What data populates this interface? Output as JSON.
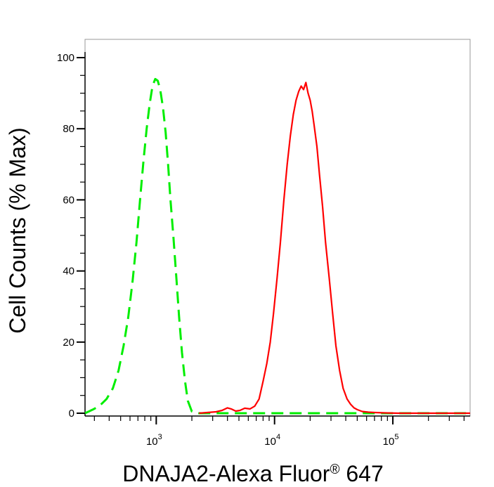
{
  "chart_data": {
    "type": "line",
    "title": "",
    "xlabel": "DNAJA2-Alexa Fluor",
    "xlabel_mark": "®",
    "xlabel_suffix": " 647",
    "ylabel": "Cell Counts (% Max)",
    "x_scale": "log",
    "xlim": [
      250,
      450000
    ],
    "ylim": [
      0,
      100
    ],
    "grid": false,
    "legend": "none",
    "y_ticks": [
      {
        "value": 0,
        "label": "0"
      },
      {
        "value": 20,
        "label": "20"
      },
      {
        "value": 40,
        "label": "40"
      },
      {
        "value": 60,
        "label": "60"
      },
      {
        "value": 80,
        "label": "80"
      },
      {
        "value": 100,
        "label": "100"
      }
    ],
    "x_ticks": [
      {
        "value": 1000,
        "base": "10",
        "exp": "3"
      },
      {
        "value": 10000,
        "base": "10",
        "exp": "4"
      },
      {
        "value": 100000,
        "base": "10",
        "exp": "5"
      }
    ],
    "series": [
      {
        "color": "#00ee00",
        "dash": true,
        "x": [
          250,
          290,
          330,
          380,
          430,
          480,
          530,
          580,
          630,
          680,
          730,
          780,
          830,
          880,
          930,
          980,
          1030,
          1080,
          1140,
          1200,
          1260,
          1320,
          1400,
          1480,
          1560,
          1650,
          1750,
          1850,
          2000,
          2300,
          5000,
          20000,
          100000,
          450000
        ],
        "y": [
          0,
          1,
          2,
          4,
          7,
          12,
          19,
          27,
          37,
          48,
          60,
          71,
          80,
          87,
          92,
          94,
          93.5,
          91,
          86,
          79,
          70,
          60,
          49,
          38,
          27,
          17,
          9,
          3.5,
          0.5,
          0,
          0,
          0,
          0,
          0
        ]
      },
      {
        "color": "#ff0000",
        "dash": false,
        "x": [
          2300,
          2700,
          3200,
          3600,
          4000,
          4300,
          4700,
          5100,
          5600,
          6200,
          6800,
          7400,
          8000,
          8600,
          9200,
          9800,
          10500,
          11200,
          12000,
          12800,
          13600,
          14400,
          15200,
          16000,
          16800,
          17600,
          18400,
          19200,
          20000,
          20800,
          21600,
          22800,
          24000,
          25500,
          27000,
          29000,
          31000,
          33000,
          35500,
          38000,
          41000,
          44000,
          47000,
          50000,
          55000,
          62000,
          70000,
          85000,
          110000,
          200000,
          450000
        ],
        "y": [
          0,
          0.2,
          0.4,
          0.8,
          1.5,
          1.2,
          0.6,
          0.8,
          1.4,
          1.2,
          2,
          4,
          9,
          14,
          20,
          28,
          38,
          48,
          60,
          70,
          78,
          84,
          88,
          90.5,
          92,
          91,
          93,
          90,
          88,
          85,
          81,
          75,
          67,
          58,
          48,
          38,
          28,
          19,
          12,
          7,
          4,
          2.5,
          1.5,
          1,
          0.5,
          0.3,
          0.2,
          0.1,
          0,
          0,
          0
        ]
      }
    ]
  }
}
